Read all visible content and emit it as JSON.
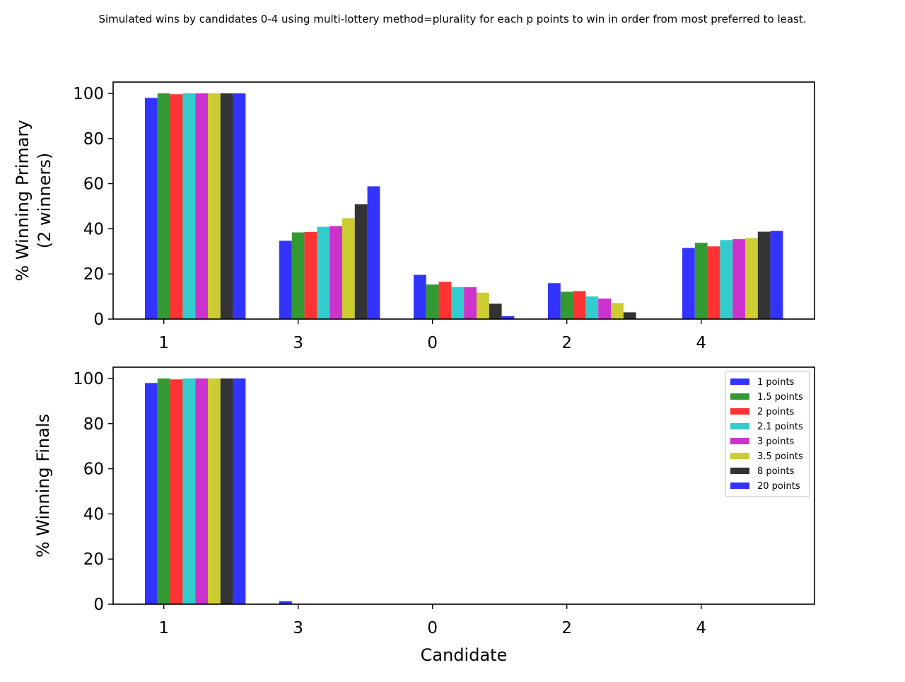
{
  "figure": {
    "title": "Simulated wins by candidates 0-4 using multi-lottery method=plurality for each p points to win in order from most preferred to least."
  },
  "chart_data": [
    {
      "type": "bar",
      "ylabel": "% Winning Primary",
      "ylabel2": "(2 winners)",
      "xlabel": "",
      "categories": [
        "1",
        "3",
        "0",
        "2",
        "4"
      ],
      "ylim": [
        0,
        105
      ],
      "yticks": [
        0,
        20,
        40,
        60,
        80,
        100
      ],
      "legend": "none",
      "series": [
        {
          "name": "1 points",
          "color": "#3333ff",
          "values": [
            98,
            34.7,
            19.6,
            15.9,
            31.5
          ]
        },
        {
          "name": "1.5 points",
          "color": "#339933",
          "values": [
            100,
            38.4,
            15.3,
            12.1,
            33.8
          ]
        },
        {
          "name": "2 points",
          "color": "#ff3333",
          "values": [
            99.6,
            38.6,
            16.5,
            12.4,
            32.2
          ]
        },
        {
          "name": "2.1 points",
          "color": "#33cccc",
          "values": [
            100,
            40.9,
            14.2,
            10,
            35
          ]
        },
        {
          "name": "3 points",
          "color": "#cc33cc",
          "values": [
            100,
            41.2,
            14.1,
            9.1,
            35.4
          ]
        },
        {
          "name": "3.5 points",
          "color": "#cccc33",
          "values": [
            100,
            44.7,
            11.7,
            7.1,
            35.9
          ]
        },
        {
          "name": "8 points",
          "color": "#333333",
          "values": [
            100,
            50.9,
            6.8,
            3,
            38.7
          ]
        },
        {
          "name": "20 points",
          "color": "#3333ff",
          "values": [
            100,
            58.8,
            1.3,
            0,
            39.1
          ]
        }
      ]
    },
    {
      "type": "bar",
      "ylabel": "% Winning Finals",
      "xlabel": "Candidate",
      "categories": [
        "1",
        "3",
        "0",
        "2",
        "4"
      ],
      "ylim": [
        0,
        105
      ],
      "yticks": [
        0,
        20,
        40,
        60,
        80,
        100
      ],
      "legend": "top-right",
      "series": [
        {
          "name": "1 points",
          "color": "#3333ff",
          "values": [
            98,
            1.3,
            0,
            0,
            0
          ]
        },
        {
          "name": "1.5 points",
          "color": "#339933",
          "values": [
            100,
            0,
            0,
            0,
            0
          ]
        },
        {
          "name": "2 points",
          "color": "#ff3333",
          "values": [
            99.6,
            0,
            0,
            0,
            0
          ]
        },
        {
          "name": "2.1 points",
          "color": "#33cccc",
          "values": [
            100,
            0,
            0,
            0,
            0
          ]
        },
        {
          "name": "3 points",
          "color": "#cc33cc",
          "values": [
            100,
            0,
            0,
            0,
            0
          ]
        },
        {
          "name": "3.5 points",
          "color": "#cccc33",
          "values": [
            100,
            0,
            0,
            0,
            0
          ]
        },
        {
          "name": "8 points",
          "color": "#333333",
          "values": [
            100,
            0,
            0,
            0,
            0
          ]
        },
        {
          "name": "20 points",
          "color": "#3333ff",
          "values": [
            100,
            0,
            0,
            0,
            0
          ]
        }
      ]
    }
  ]
}
